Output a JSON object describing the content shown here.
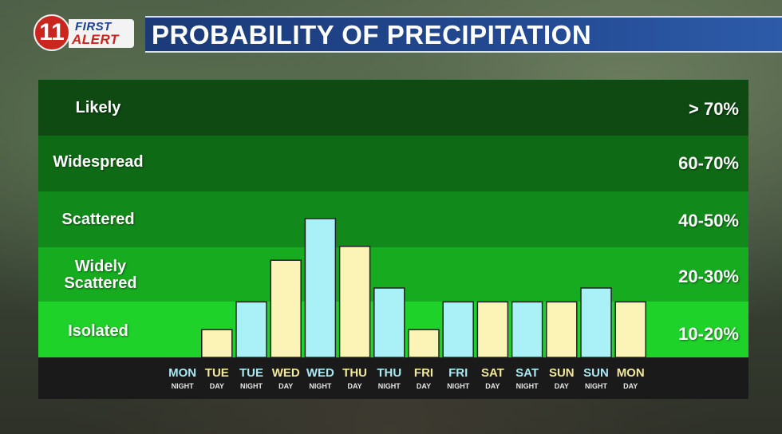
{
  "logo": {
    "number": "11",
    "first": "FIRST",
    "alert": "ALERT"
  },
  "title": "PROBABILITY OF PRECIPITATION",
  "bands": [
    {
      "label": "Likely",
      "range": "> 70%",
      "color": "#0e4a12"
    },
    {
      "label": "Widespread",
      "range": "60-70%",
      "color": "#0f6a15"
    },
    {
      "label": "Scattered",
      "range": "40-50%",
      "color": "#128a1b"
    },
    {
      "label": "Widely Scattered",
      "range": "20-30%",
      "color": "#17ab20"
    },
    {
      "label": "Isolated",
      "range": "10-20%",
      "color": "#1fd22a"
    }
  ],
  "chart_data": {
    "type": "bar",
    "categories": [
      {
        "day": "MON",
        "period": "NIGHT"
      },
      {
        "day": "TUE",
        "period": "DAY"
      },
      {
        "day": "TUE",
        "period": "NIGHT"
      },
      {
        "day": "WED",
        "period": "DAY"
      },
      {
        "day": "WED",
        "period": "NIGHT"
      },
      {
        "day": "THU",
        "period": "DAY"
      },
      {
        "day": "THU",
        "period": "NIGHT"
      },
      {
        "day": "FRI",
        "period": "DAY"
      },
      {
        "day": "FRI",
        "period": "NIGHT"
      },
      {
        "day": "SAT",
        "period": "DAY"
      },
      {
        "day": "SAT",
        "period": "NIGHT"
      },
      {
        "day": "SUN",
        "period": "DAY"
      },
      {
        "day": "SUN",
        "period": "NIGHT"
      },
      {
        "day": "MON",
        "period": "DAY"
      }
    ],
    "values": [
      0,
      10,
      20,
      35,
      50,
      40,
      25,
      10,
      20,
      20,
      20,
      20,
      25,
      20
    ],
    "ylim": [
      0,
      100
    ],
    "day_color": "#fbf4b6",
    "night_color": "#a9f1f6",
    "day_label_color": "#f3e89a",
    "night_label_color": "#a9e9f4",
    "grid": false,
    "legend": "none"
  }
}
